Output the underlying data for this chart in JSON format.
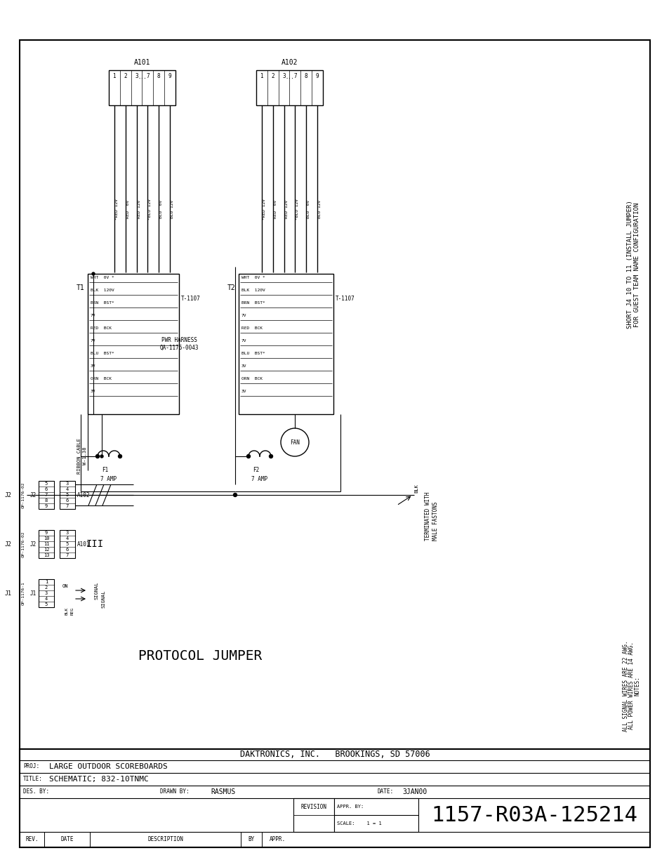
{
  "bg_color": "#ffffff",
  "title_block": {
    "company": "DAKTRONICS, INC.   BROOKINGS, SD 57006",
    "proj": "LARGE OUTDOOR SCOREBOARDS",
    "title": "SCHEMATIC; 832-10TNMC",
    "drawn": "RASMUS",
    "date": "3JAN00",
    "drawing_number": "1157-R03A-125214",
    "scale": "1 = 1"
  },
  "side_note_line1": "FOR GUEST TEAM NAME CONFIGURATION",
  "side_note_line2": "SHORT J4 10 TO 11 (INSTALL JUMPER)",
  "notes_line1": "NOTES:",
  "notes_line2": "ALL POWER WIRES ARE 14 AWG.",
  "notes_line3": "ALL SIGNAL WIRES ARE 22 AWG.",
  "protocol_jumper_label": "PROTOCOL JUMPER",
  "pwr_harness": "PWR HARNESS\nQA-1176-0043",
  "terminated": "TERMINATED WITH\nMALE FASTONS"
}
